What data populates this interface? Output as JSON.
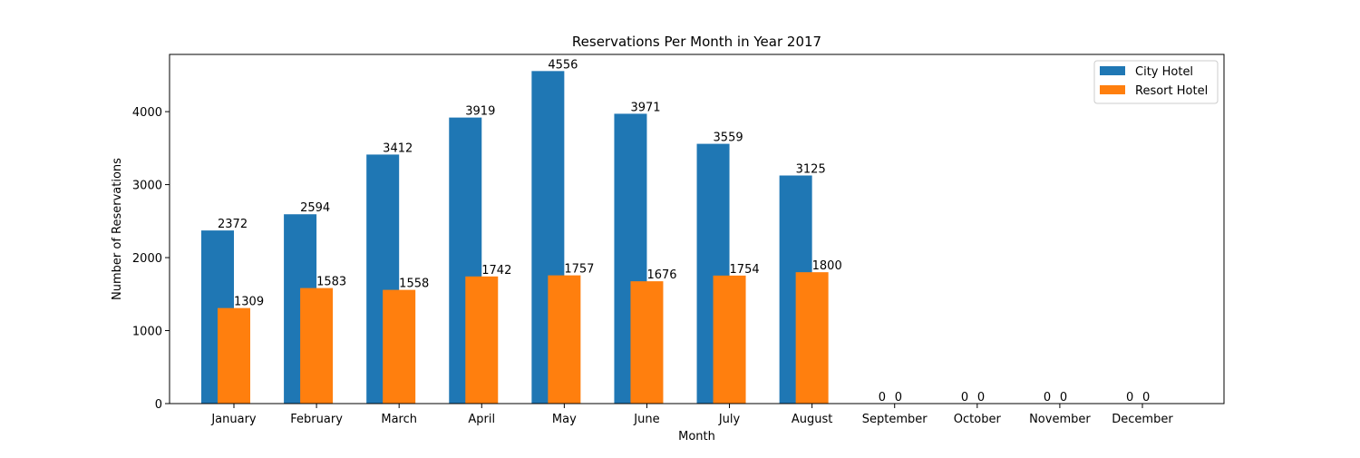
{
  "chart_data": {
    "type": "bar",
    "title": "Reservations Per Month in Year 2017",
    "xlabel": "Month",
    "ylabel": "Number of Reservations",
    "categories": [
      "January",
      "February",
      "March",
      "April",
      "May",
      "June",
      "July",
      "August",
      "September",
      "October",
      "November",
      "December"
    ],
    "series": [
      {
        "name": "City Hotel",
        "color": "#1f77b4",
        "values": [
          2372,
          2594,
          3412,
          3919,
          4556,
          3971,
          3559,
          3125,
          0,
          0,
          0,
          0
        ]
      },
      {
        "name": "Resort Hotel",
        "color": "#ff7f0e",
        "values": [
          1309,
          1583,
          1558,
          1742,
          1757,
          1676,
          1754,
          1800,
          0,
          0,
          0,
          0
        ]
      }
    ],
    "ylim": [
      0,
      4784
    ],
    "yticks": [
      0,
      1000,
      2000,
      3000,
      4000
    ],
    "grid": false,
    "legend_position": "top-right"
  }
}
